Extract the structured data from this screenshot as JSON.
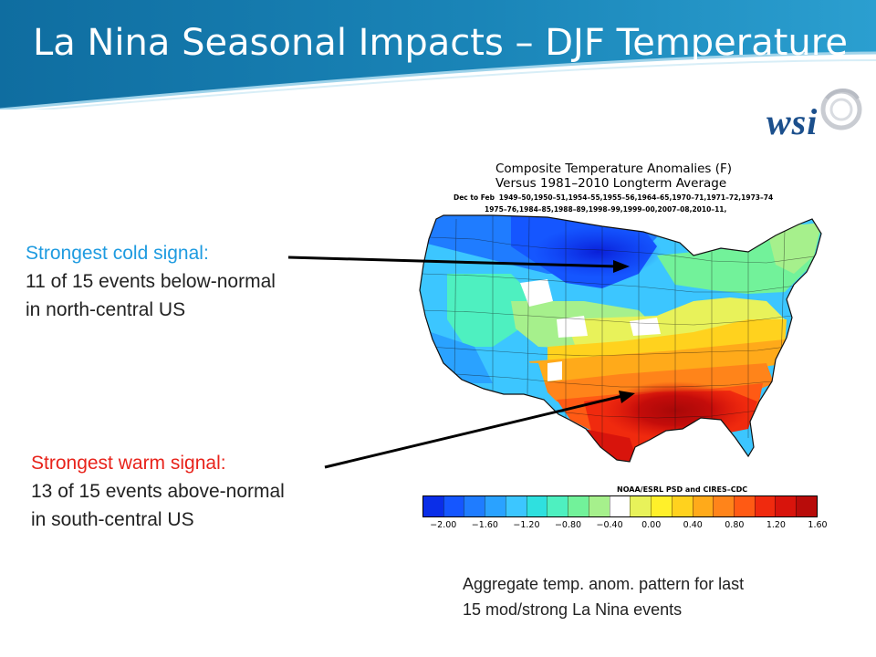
{
  "slide": {
    "title": "La Nina Seasonal Impacts – DJF Temperature",
    "logo_text": "wsi"
  },
  "map": {
    "title_line1": "Composite Temperature Anomalies (F)",
    "title_line2": "Versus 1981–2010 Longterm Average",
    "season_label": "Dec to Feb",
    "years_line1": "1949–50,1950–51,1954–55,1955–56,1964–65,1970–71,1971–72,1973–74",
    "years_line2": "1975–76,1984–85,1988–89,1998–99,1999–00,2007–08,2010–11,",
    "credit": "NOAA/ESRL PSD and CIRES–CDC",
    "colorbar_colors": [
      "#0a2ee8",
      "#1556ff",
      "#1f7cff",
      "#2aa2ff",
      "#3cc6ff",
      "#2fe0df",
      "#4ef0c0",
      "#72f29a",
      "#a6f08c",
      "#ffffff",
      "#e8f25a",
      "#fff02a",
      "#ffd21e",
      "#ffaa1a",
      "#ff841a",
      "#ff5a14",
      "#f02a0e",
      "#d8140c",
      "#b80c0a"
    ],
    "colorbar_ticks": [
      "−2.00",
      "−1.60",
      "−1.20",
      "−0.80",
      "−0.40",
      "0.00",
      "0.40",
      "0.80",
      "1.20",
      "1.60"
    ]
  },
  "callouts": {
    "cold": {
      "heading": "Strongest cold signal:",
      "line1": "11 of 15 events below-normal",
      "line2": "in north-central US"
    },
    "warm": {
      "heading": "Strongest warm signal:",
      "line1": "13 of 15 events above-normal",
      "line2": "in south-central US"
    }
  },
  "caption": {
    "line1": "Aggregate temp. anom. pattern for last",
    "line2": "15 mod/strong La Nina events"
  }
}
